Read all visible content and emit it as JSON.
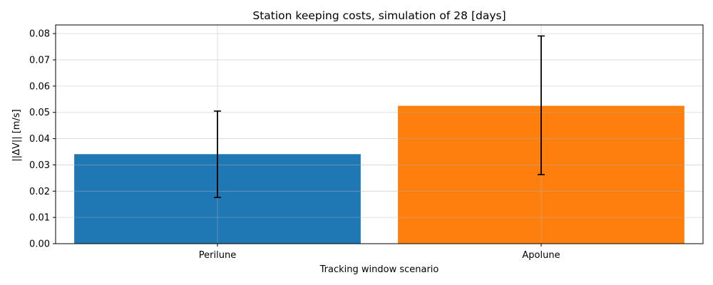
{
  "chart_data": {
    "type": "bar",
    "title": "Station keeping costs, simulation of 28 [days]",
    "xlabel": "Tracking window scenario",
    "ylabel": "||ΔV|| [m/s]",
    "categories": [
      "Perilune",
      "Apolune"
    ],
    "values": [
      0.0341,
      0.0525
    ],
    "error_low": [
      0.0176,
      0.0263
    ],
    "error_high": [
      0.0505,
      0.0791
    ],
    "colors": [
      "#1f77b4",
      "#ff7f0e"
    ],
    "ylim": [
      0,
      0.0833
    ],
    "yticks": [
      0.0,
      0.01,
      0.02,
      0.03,
      0.04,
      0.05,
      0.06,
      0.07,
      0.08
    ],
    "ytick_labels": [
      "0.00",
      "0.01",
      "0.02",
      "0.03",
      "0.04",
      "0.05",
      "0.06",
      "0.07",
      "0.08"
    ],
    "grid": true,
    "legend": "none"
  }
}
